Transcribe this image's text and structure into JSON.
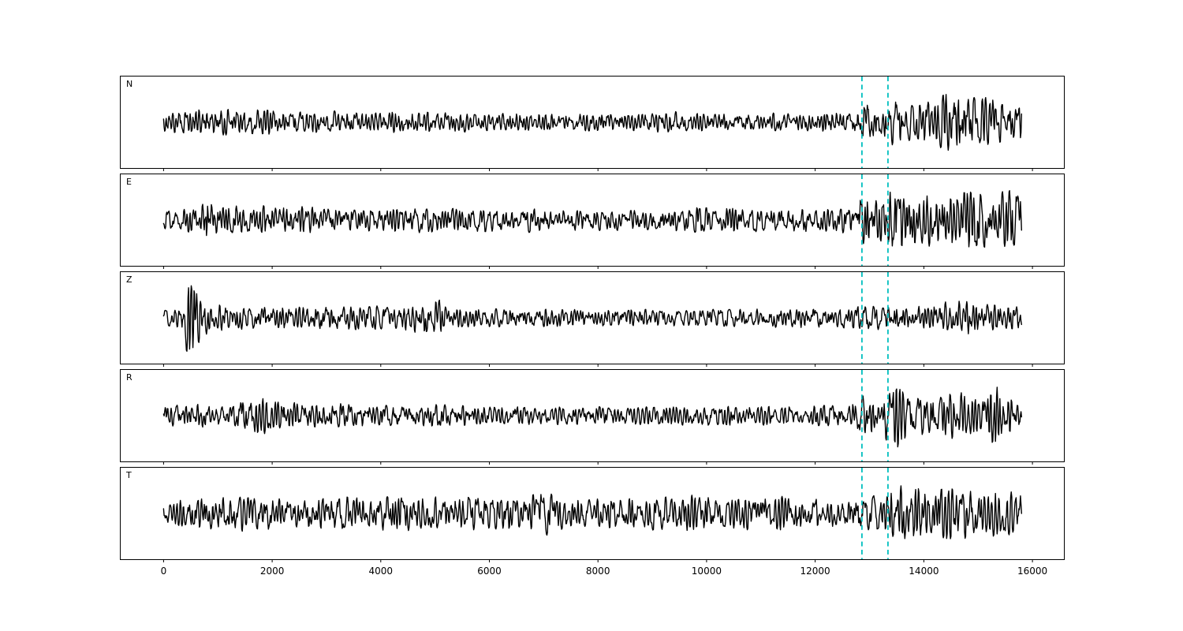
{
  "figure": {
    "background": "#ffffff",
    "frame_color": "#000000",
    "title": ""
  },
  "chart_data": {
    "type": "line",
    "title": "",
    "xlabel": "",
    "ylabel": "",
    "description": "Five stacked seismogram component traces sharing one x-axis, with two vertical dashed pick lines",
    "grid": false,
    "legend": false,
    "xlim": [
      -790,
      16580
    ],
    "x_ticks": [
      0,
      2000,
      4000,
      6000,
      8000,
      10000,
      12000,
      14000,
      16000
    ],
    "x_tick_labels": [
      "0",
      "2000",
      "4000",
      "6000",
      "8000",
      "10000",
      "12000",
      "14000",
      "16000"
    ],
    "samples": {
      "x_start": 0,
      "x_end": 15800,
      "x_step": 10
    },
    "line_color": "#000000",
    "line_width": 1.4,
    "pick_lines": {
      "x": [
        12860,
        13340
      ],
      "color": "#00bfbf",
      "style": "dashed",
      "width": 1.8
    },
    "panels": [
      {
        "label": "N",
        "seed": 101,
        "envelope": [
          [
            0,
            0.22
          ],
          [
            250,
            0.3
          ],
          [
            600,
            0.34
          ],
          [
            1600,
            0.32
          ],
          [
            2500,
            0.28
          ],
          [
            4000,
            0.26
          ],
          [
            5500,
            0.24
          ],
          [
            7000,
            0.22
          ],
          [
            9000,
            0.22
          ],
          [
            9400,
            0.3
          ],
          [
            9700,
            0.22
          ],
          [
            11000,
            0.22
          ],
          [
            12400,
            0.24
          ],
          [
            12750,
            0.26
          ],
          [
            12900,
            0.5
          ],
          [
            13100,
            0.45
          ],
          [
            13400,
            0.62
          ],
          [
            13800,
            0.5
          ],
          [
            14200,
            0.55
          ],
          [
            14700,
            0.92
          ],
          [
            15000,
            0.55
          ],
          [
            15300,
            0.65
          ],
          [
            15600,
            0.5
          ],
          [
            15800,
            0.45
          ]
        ]
      },
      {
        "label": "E",
        "seed": 202,
        "envelope": [
          [
            0,
            0.22
          ],
          [
            400,
            0.3
          ],
          [
            700,
            0.32
          ],
          [
            820,
            0.78
          ],
          [
            950,
            0.4
          ],
          [
            1400,
            0.34
          ],
          [
            2300,
            0.36
          ],
          [
            3500,
            0.3
          ],
          [
            5000,
            0.32
          ],
          [
            6500,
            0.3
          ],
          [
            8000,
            0.26
          ],
          [
            9500,
            0.28
          ],
          [
            10800,
            0.32
          ],
          [
            11500,
            0.3
          ],
          [
            12300,
            0.3
          ],
          [
            12700,
            0.35
          ],
          [
            12900,
            0.75
          ],
          [
            13150,
            0.5
          ],
          [
            13400,
            0.8
          ],
          [
            13900,
            0.7
          ],
          [
            14400,
            0.62
          ],
          [
            14900,
            0.8
          ],
          [
            15300,
            0.68
          ],
          [
            15800,
            0.72
          ]
        ]
      },
      {
        "label": "Z",
        "seed": 303,
        "envelope": [
          [
            0,
            0.2
          ],
          [
            330,
            0.25
          ],
          [
            420,
            0.95
          ],
          [
            560,
            0.85
          ],
          [
            700,
            0.5
          ],
          [
            900,
            0.35
          ],
          [
            1300,
            0.3
          ],
          [
            2000,
            0.26
          ],
          [
            3000,
            0.3
          ],
          [
            4200,
            0.28
          ],
          [
            5100,
            0.48
          ],
          [
            5300,
            0.26
          ],
          [
            6500,
            0.24
          ],
          [
            8000,
            0.22
          ],
          [
            9500,
            0.22
          ],
          [
            11000,
            0.24
          ],
          [
            12400,
            0.28
          ],
          [
            12900,
            0.3
          ],
          [
            13400,
            0.28
          ],
          [
            14000,
            0.3
          ],
          [
            14600,
            0.55
          ],
          [
            15000,
            0.35
          ],
          [
            15500,
            0.3
          ],
          [
            15800,
            0.28
          ]
        ]
      },
      {
        "label": "R",
        "seed": 404,
        "envelope": [
          [
            0,
            0.24
          ],
          [
            400,
            0.3
          ],
          [
            1200,
            0.3
          ],
          [
            2050,
            0.55
          ],
          [
            2250,
            0.34
          ],
          [
            3200,
            0.3
          ],
          [
            4500,
            0.28
          ],
          [
            6000,
            0.26
          ],
          [
            7500,
            0.22
          ],
          [
            9000,
            0.24
          ],
          [
            10500,
            0.24
          ],
          [
            12000,
            0.24
          ],
          [
            12600,
            0.26
          ],
          [
            12900,
            0.6
          ],
          [
            13150,
            0.45
          ],
          [
            13450,
            0.85
          ],
          [
            13750,
            0.55
          ],
          [
            14200,
            0.5
          ],
          [
            14700,
            0.62
          ],
          [
            15050,
            0.45
          ],
          [
            15350,
            0.8
          ],
          [
            15600,
            0.5
          ],
          [
            15800,
            0.4
          ]
        ]
      },
      {
        "label": "T",
        "seed": 505,
        "envelope": [
          [
            0,
            0.24
          ],
          [
            500,
            0.4
          ],
          [
            900,
            0.46
          ],
          [
            1800,
            0.44
          ],
          [
            2600,
            0.4
          ],
          [
            3600,
            0.44
          ],
          [
            4700,
            0.42
          ],
          [
            5300,
            0.46
          ],
          [
            6200,
            0.38
          ],
          [
            7100,
            0.55
          ],
          [
            7500,
            0.4
          ],
          [
            8500,
            0.36
          ],
          [
            9600,
            0.45
          ],
          [
            10300,
            0.38
          ],
          [
            11200,
            0.44
          ],
          [
            12200,
            0.36
          ],
          [
            12850,
            0.5
          ],
          [
            13200,
            0.42
          ],
          [
            13700,
            0.9
          ],
          [
            14100,
            0.55
          ],
          [
            14600,
            0.7
          ],
          [
            15000,
            0.55
          ],
          [
            15450,
            0.68
          ],
          [
            15800,
            0.55
          ]
        ]
      }
    ]
  }
}
